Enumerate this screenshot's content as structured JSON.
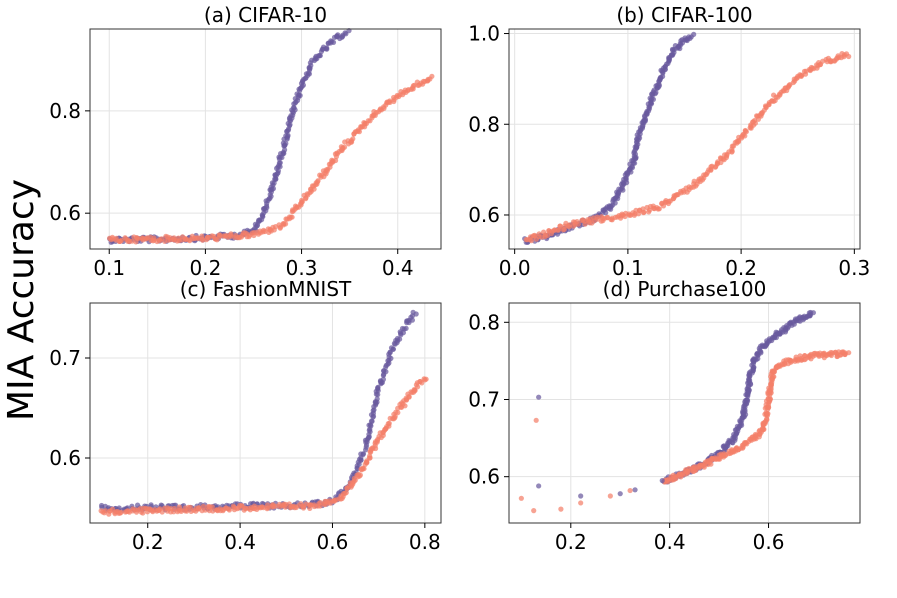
{
  "figure": {
    "ylabel": "MIA Accuracy",
    "colors": {
      "series_a": "#6a5a9e",
      "series_b": "#f4806a"
    }
  },
  "chart_data": [
    {
      "type": "scatter",
      "title": "(a) CIFAR-10",
      "xlim": [
        0.08,
        0.445
      ],
      "ylim": [
        0.53,
        0.96
      ],
      "xticks": [
        0.1,
        0.2,
        0.3,
        0.4
      ],
      "xtick_labels": [
        "0.1",
        "0.2",
        "0.3",
        "0.4"
      ],
      "yticks": [
        0.6,
        0.8
      ],
      "ytick_labels": [
        "0.6",
        "0.8"
      ],
      "series": [
        {
          "name": "series 1",
          "color": "#6a5a9e",
          "curve": [
            [
              0.1,
              0.548
            ],
            [
              0.15,
              0.549
            ],
            [
              0.2,
              0.552
            ],
            [
              0.23,
              0.556
            ],
            [
              0.25,
              0.565
            ],
            [
              0.26,
              0.6
            ],
            [
              0.27,
              0.65
            ],
            [
              0.28,
              0.72
            ],
            [
              0.29,
              0.79
            ],
            [
              0.3,
              0.85
            ],
            [
              0.31,
              0.89
            ],
            [
              0.32,
              0.915
            ],
            [
              0.335,
              0.94
            ],
            [
              0.348,
              0.955
            ]
          ]
        },
        {
          "name": "series 2",
          "color": "#f4806a",
          "curve": [
            [
              0.1,
              0.548
            ],
            [
              0.2,
              0.551
            ],
            [
              0.25,
              0.558
            ],
            [
              0.28,
              0.575
            ],
            [
              0.3,
              0.62
            ],
            [
              0.32,
              0.67
            ],
            [
              0.34,
              0.72
            ],
            [
              0.36,
              0.765
            ],
            [
              0.38,
              0.8
            ],
            [
              0.4,
              0.83
            ],
            [
              0.42,
              0.85
            ],
            [
              0.435,
              0.865
            ]
          ]
        }
      ]
    },
    {
      "type": "scatter",
      "title": "(b) CIFAR-100",
      "xlim": [
        -0.005,
        0.305
      ],
      "ylim": [
        0.525,
        1.01
      ],
      "xticks": [
        0.0,
        0.1,
        0.2,
        0.3
      ],
      "xtick_labels": [
        "0.0",
        "0.1",
        "0.2",
        "0.3"
      ],
      "yticks": [
        0.6,
        0.8,
        1.0
      ],
      "ytick_labels": [
        "0.6",
        "0.8",
        "1.0"
      ],
      "series": [
        {
          "name": "series 1",
          "color": "#6a5a9e",
          "curve": [
            [
              0.01,
              0.543
            ],
            [
              0.03,
              0.555
            ],
            [
              0.05,
              0.575
            ],
            [
              0.07,
              0.59
            ],
            [
              0.085,
              0.62
            ],
            [
              0.095,
              0.66
            ],
            [
              0.105,
              0.72
            ],
            [
              0.11,
              0.78
            ],
            [
              0.12,
              0.85
            ],
            [
              0.13,
              0.91
            ],
            [
              0.14,
              0.96
            ],
            [
              0.15,
              0.985
            ],
            [
              0.157,
              0.993
            ]
          ]
        },
        {
          "name": "series 2",
          "color": "#f4806a",
          "curve": [
            [
              0.01,
              0.543
            ],
            [
              0.05,
              0.58
            ],
            [
              0.1,
              0.6
            ],
            [
              0.13,
              0.62
            ],
            [
              0.16,
              0.67
            ],
            [
              0.19,
              0.74
            ],
            [
              0.21,
              0.8
            ],
            [
              0.23,
              0.86
            ],
            [
              0.25,
              0.9
            ],
            [
              0.27,
              0.935
            ],
            [
              0.295,
              0.955
            ]
          ]
        }
      ]
    },
    {
      "type": "scatter",
      "title": "(c) FashionMNIST",
      "xlim": [
        0.075,
        0.835
      ],
      "ylim": [
        0.535,
        0.755
      ],
      "xticks": [
        0.2,
        0.4,
        0.6,
        0.8
      ],
      "xtick_labels": [
        "0.2",
        "0.4",
        "0.6",
        "0.8"
      ],
      "yticks": [
        0.6,
        0.7
      ],
      "ytick_labels": [
        "0.6",
        "0.7"
      ],
      "series": [
        {
          "name": "series 1",
          "color": "#6a5a9e",
          "curve": [
            [
              0.1,
              0.55
            ],
            [
              0.3,
              0.551
            ],
            [
              0.55,
              0.553
            ],
            [
              0.6,
              0.557
            ],
            [
              0.64,
              0.575
            ],
            [
              0.67,
              0.61
            ],
            [
              0.7,
              0.67
            ],
            [
              0.73,
              0.71
            ],
            [
              0.76,
              0.735
            ],
            [
              0.78,
              0.745
            ]
          ]
        },
        {
          "name": "series 2",
          "color": "#f4806a",
          "curve": [
            [
              0.1,
              0.546
            ],
            [
              0.3,
              0.549
            ],
            [
              0.55,
              0.552
            ],
            [
              0.62,
              0.56
            ],
            [
              0.66,
              0.585
            ],
            [
              0.7,
              0.62
            ],
            [
              0.74,
              0.645
            ],
            [
              0.77,
              0.665
            ],
            [
              0.8,
              0.68
            ]
          ]
        }
      ]
    },
    {
      "type": "scatter",
      "title": "(d) Purchase100",
      "xlim": [
        0.075,
        0.785
      ],
      "ylim": [
        0.54,
        0.825
      ],
      "xticks": [
        0.2,
        0.4,
        0.6
      ],
      "xtick_labels": [
        "0.2",
        "0.4",
        "0.6"
      ],
      "yticks": [
        0.6,
        0.7,
        0.8
      ],
      "ytick_labels": [
        "0.6",
        "0.7",
        "0.8"
      ],
      "series": [
        {
          "name": "series 1",
          "color": "#6a5a9e",
          "curve": [
            [
              0.39,
              0.595
            ],
            [
              0.45,
              0.61
            ],
            [
              0.5,
              0.63
            ],
            [
              0.53,
              0.65
            ],
            [
              0.55,
              0.68
            ],
            [
              0.56,
              0.72
            ],
            [
              0.57,
              0.75
            ],
            [
              0.59,
              0.77
            ],
            [
              0.62,
              0.785
            ],
            [
              0.65,
              0.8
            ],
            [
              0.69,
              0.812
            ]
          ]
        },
        {
          "name": "series 2",
          "color": "#f4806a",
          "curve": [
            [
              0.39,
              0.595
            ],
            [
              0.45,
              0.61
            ],
            [
              0.5,
              0.625
            ],
            [
              0.55,
              0.64
            ],
            [
              0.59,
              0.66
            ],
            [
              0.6,
              0.7
            ],
            [
              0.61,
              0.74
            ],
            [
              0.65,
              0.752
            ],
            [
              0.7,
              0.757
            ],
            [
              0.76,
              0.76
            ]
          ]
        }
      ],
      "points": [
        {
          "series": 1,
          "color": "#6a5a9e",
          "xy": [
            [
              0.135,
              0.703
            ],
            [
              0.135,
              0.588
            ],
            [
              0.22,
              0.575
            ],
            [
              0.3,
              0.578
            ],
            [
              0.33,
              0.583
            ],
            [
              0.385,
              0.595
            ]
          ]
        },
        {
          "series": 2,
          "color": "#f4806a",
          "xy": [
            [
              0.1,
              0.572
            ],
            [
              0.125,
              0.556
            ],
            [
              0.13,
              0.673
            ],
            [
              0.18,
              0.558
            ],
            [
              0.22,
              0.566
            ],
            [
              0.28,
              0.575
            ],
            [
              0.32,
              0.582
            ],
            [
              0.395,
              0.595
            ]
          ]
        }
      ]
    }
  ]
}
